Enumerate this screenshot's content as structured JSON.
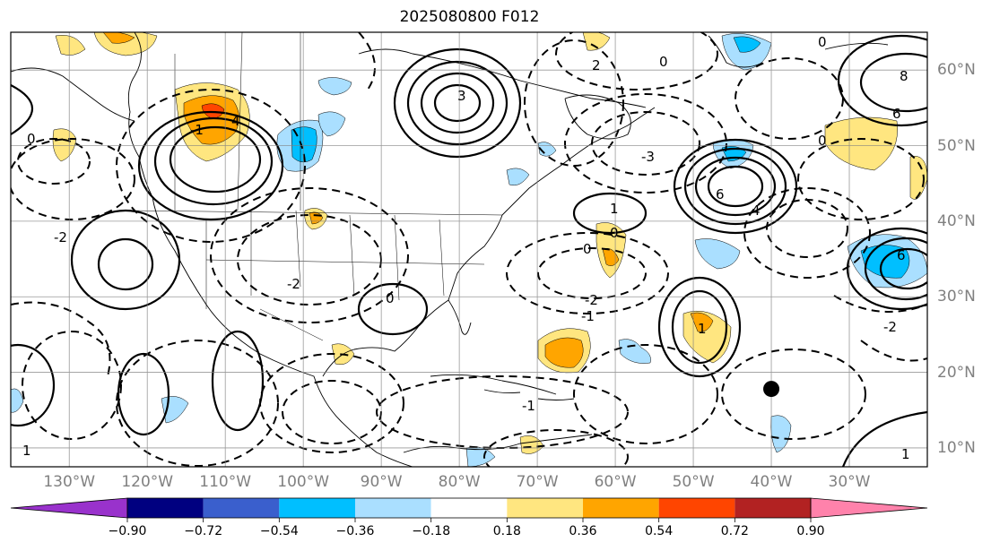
{
  "title": "2025080800 F012",
  "lon_labels": [
    {
      "lon": -130,
      "text": "130°W"
    },
    {
      "lon": -120,
      "text": "120°W"
    },
    {
      "lon": -110,
      "text": "110°W"
    },
    {
      "lon": -100,
      "text": "100°W"
    },
    {
      "lon": -90,
      "text": "90°W"
    },
    {
      "lon": -80,
      "text": "80°W"
    },
    {
      "lon": -70,
      "text": "70°W"
    },
    {
      "lon": -60,
      "text": "60°W"
    },
    {
      "lon": -50,
      "text": "50°W"
    },
    {
      "lon": -40,
      "text": "40°W"
    },
    {
      "lon": -30,
      "text": "30°W"
    }
  ],
  "lat_labels": [
    {
      "lat": 60,
      "text": "60°N"
    },
    {
      "lat": 50,
      "text": "50°N"
    },
    {
      "lat": 40,
      "text": "40°N"
    },
    {
      "lat": 30,
      "text": "30°N"
    },
    {
      "lat": 20,
      "text": "20°N"
    },
    {
      "lat": 10,
      "text": "10°N"
    }
  ],
  "colorbar": {
    "ticks": [
      "−0.90",
      "−0.72",
      "−0.54",
      "−0.36",
      "−0.18",
      "0.18",
      "0.36",
      "0.54",
      "0.72",
      "0.90"
    ],
    "colors": [
      "#9932cc",
      "#000080",
      "#3a5fcd",
      "#00bfff",
      "#aadfff",
      "#ffffff",
      "#ffe680",
      "#ffa500",
      "#ff4500",
      "#b22222",
      "#ff82ab"
    ]
  },
  "chart_data": {
    "type": "map",
    "extent": {
      "lon": [
        -137.5,
        -20
      ],
      "lat": [
        7.5,
        65
      ]
    },
    "grid": true,
    "contour_labels": [
      "1",
      "2",
      "3",
      "4",
      "6",
      "8",
      "0",
      "-1",
      "-2",
      "-3"
    ],
    "marker": {
      "lon": -40,
      "lat": 17.8,
      "color": "#000000"
    }
  }
}
